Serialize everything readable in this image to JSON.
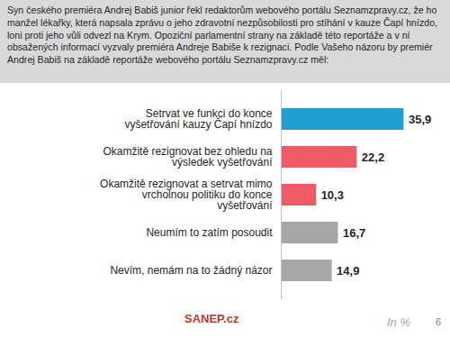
{
  "chart_data": {
    "type": "bar",
    "orientation": "horizontal",
    "title": "Syn českého premiéra Andrej Babiš junior řekl redaktorům webového portálu Seznamzpravy.cz, že ho manžel lékařky, která napsala zprávu o jeho zdravotní nezpůsobilosti pro stíhání v kauze Čapí hnízdo, loni proti jeho vůli odvezl na Krym. Opoziční parlamentní strany na základě této reportáže a v ní obsažených informací vyzvaly premiéra Andreje Babiše k rezignaci. Podle Vašeho názoru by premiér Andrej Babiš na základě reportáže webového portálu Seznamzpravy.cz měl:",
    "categories": [
      "Setrvat ve funkci do konce vyšetřování kauzy Čapí hnízdo",
      "Okamžitě rezignovat bez ohledu na výsledek vyšetřování",
      "Okamžitě rezignovat a setrvat mimo vrcholnou politiku do konce vyšetřování",
      "Neumím to zatím posoudit",
      "Nevím, nemám na to žádný názor"
    ],
    "values": [
      35.9,
      22.2,
      10.3,
      16.7,
      14.9
    ],
    "value_labels": [
      "35,9",
      "22,2",
      "10,3",
      "16,7",
      "14,9"
    ],
    "colors": [
      "#1f9fcf",
      "#f05a66",
      "#f05a66",
      "#a6a6a6",
      "#a6a6a6"
    ],
    "xlim": [
      0,
      40
    ],
    "data_labels": true,
    "tick_labels": "y",
    "grid": false,
    "annotations": [
      "SANEP.cz",
      "In %",
      "6"
    ]
  }
}
